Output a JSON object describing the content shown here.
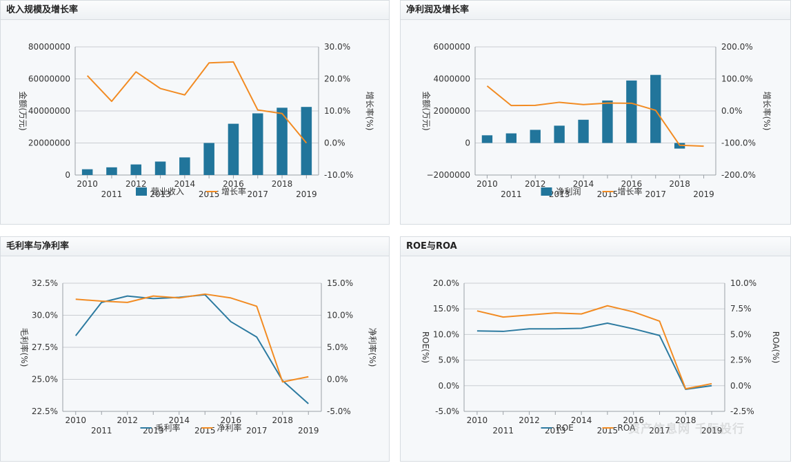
{
  "colors": {
    "bar": "#21759b",
    "orange": "#f28b22",
    "blue_line": "#2c7aa0",
    "grid": "#c9cdd1",
    "axis": "#9aa0a6"
  },
  "watermark": "资产信息网 千际投行",
  "charts": [
    {
      "title": "收入规模及增长率",
      "chart_data": {
        "type": "bar+line",
        "categories": [
          "2010",
          "2011",
          "2012",
          "2013",
          "2014",
          "2015",
          "2016",
          "2017",
          "2018",
          "2019"
        ],
        "series": [
          {
            "name": "营业收入",
            "type": "bar",
            "axis": "left",
            "values": [
              3600000,
              4800000,
              6600000,
              8400000,
              11000000,
              20000000,
              32000000,
              38500000,
              42000000,
              42500000
            ]
          },
          {
            "name": "增长率",
            "type": "line",
            "axis": "right",
            "values": [
              21,
              13,
              22.2,
              17,
              15,
              25,
              25.3,
              10.3,
              9.2,
              0
            ]
          }
        ],
        "left_axis": {
          "title": "金额(万元)",
          "min": 0,
          "max": 80000000,
          "ticks": [
            "0",
            "20000000",
            "40000000",
            "60000000",
            "80000000"
          ]
        },
        "right_axis": {
          "title": "增长率(%)",
          "min": -10,
          "max": 30,
          "ticks": [
            "-10.0%",
            "0.0%",
            "10.0%",
            "20.0%",
            "30.0%"
          ]
        },
        "legend": [
          "营业收入",
          "增长率"
        ]
      }
    },
    {
      "title": "净利润及增长率",
      "chart_data": {
        "type": "bar+line",
        "categories": [
          "2010",
          "2011",
          "2012",
          "2013",
          "2014",
          "2015",
          "2016",
          "2017",
          "2018",
          "2019"
        ],
        "series": [
          {
            "name": "净利润",
            "type": "bar",
            "axis": "left",
            "values": [
              480000,
              600000,
              820000,
              1080000,
              1450000,
              2650000,
              3900000,
              4250000,
              -350000,
              0
            ]
          },
          {
            "name": "增长率",
            "type": "line",
            "axis": "right",
            "values": [
              78,
              17,
              17.5,
              27,
              20,
              24.5,
              24,
              2,
              -107,
              -110
            ]
          }
        ],
        "left_axis": {
          "title": "金额(万元)",
          "min": -2000000,
          "max": 6000000,
          "ticks": [
            "−2000000",
            "0",
            "2000000",
            "4000000",
            "6000000"
          ]
        },
        "right_axis": {
          "title": "增长率(%)",
          "min": -200,
          "max": 200,
          "ticks": [
            "-200.0%",
            "-100.0%",
            "0.0%",
            "100.0%",
            "200.0%"
          ]
        },
        "legend": [
          "净利润",
          "增长率"
        ]
      }
    },
    {
      "title": "毛利率与净利率",
      "chart_data": {
        "type": "line",
        "categories": [
          "2010",
          "2011",
          "2012",
          "2013",
          "2014",
          "2015",
          "2016",
          "2017",
          "2018",
          "2019"
        ],
        "series": [
          {
            "name": "毛利率",
            "type": "line",
            "axis": "left",
            "color": "blue",
            "values": [
              28.4,
              31,
              31.5,
              31.3,
              31.4,
              31.6,
              29.5,
              28.3,
              24.9,
              23.1
            ]
          },
          {
            "name": "净利率",
            "type": "line",
            "axis": "right",
            "color": "orange",
            "values": [
              12.5,
              12.2,
              12.0,
              13.0,
              12.7,
              13.3,
              12.7,
              11.4,
              -0.4,
              0.4
            ]
          }
        ],
        "left_axis": {
          "title": "毛利率(%)",
          "min": 22.5,
          "max": 32.5,
          "ticks": [
            "22.5%",
            "25.0%",
            "27.5%",
            "30.0%",
            "32.5%"
          ]
        },
        "right_axis": {
          "title": "净利率(%)",
          "min": -5,
          "max": 15,
          "ticks": [
            "-5.0%",
            "0.0%",
            "5.0%",
            "10.0%",
            "15.0%"
          ]
        },
        "legend": [
          "毛利率",
          "净利率"
        ]
      }
    },
    {
      "title": "ROE与ROA",
      "chart_data": {
        "type": "line",
        "categories": [
          "2010",
          "2011",
          "2012",
          "2013",
          "2014",
          "2015",
          "2016",
          "2017",
          "2018",
          "2019"
        ],
        "series": [
          {
            "name": "ROE",
            "type": "line",
            "axis": "left",
            "color": "blue",
            "values": [
              10.7,
              10.6,
              11.1,
              11.1,
              11.2,
              12.2,
              11.1,
              9.8,
              -0.7,
              0
            ]
          },
          {
            "name": "ROA",
            "type": "line",
            "axis": "right",
            "color": "orange",
            "values": [
              7.3,
              6.7,
              6.9,
              7.1,
              7.0,
              7.8,
              7.2,
              6.3,
              -0.3,
              0.2
            ]
          }
        ],
        "left_axis": {
          "title": "ROE(%)",
          "min": -5,
          "max": 20,
          "ticks": [
            "-5.0%",
            "0.0%",
            "5.0%",
            "10.0%",
            "15.0%",
            "20.0%"
          ]
        },
        "right_axis": {
          "title": "ROA(%)",
          "min": -2.5,
          "max": 10,
          "ticks": [
            "-2.5%",
            "0.0%",
            "2.5%",
            "5.0%",
            "7.5%",
            "10.0%"
          ]
        },
        "legend": [
          "ROE",
          "ROA"
        ]
      }
    }
  ]
}
